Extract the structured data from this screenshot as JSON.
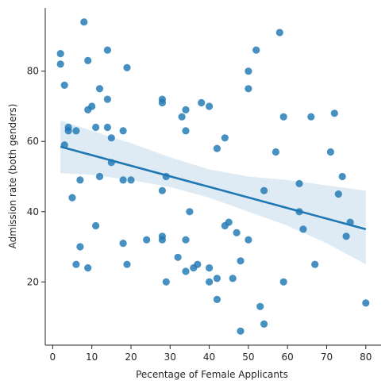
{
  "chart_data": {
    "type": "scatter",
    "title": "",
    "xlabel": "Pecentage of Female Applicants",
    "ylabel": "Admission rate (both genders)",
    "xlim": [
      -1.9,
      83.9
    ],
    "ylim": [
      2,
      98
    ],
    "x_ticks": [
      0,
      10,
      20,
      30,
      40,
      50,
      60,
      70,
      80
    ],
    "y_ticks": [
      20,
      40,
      60,
      80
    ],
    "grid": false,
    "legend": "none",
    "point_color": "#1f77b4",
    "regression_color": "#1f77b4",
    "ci_color": "#1f77b4",
    "points": [
      {
        "x": 2,
        "y": 85
      },
      {
        "x": 2,
        "y": 82
      },
      {
        "x": 3,
        "y": 76
      },
      {
        "x": 3,
        "y": 59
      },
      {
        "x": 4,
        "y": 64
      },
      {
        "x": 4,
        "y": 63
      },
      {
        "x": 5,
        "y": 44
      },
      {
        "x": 6,
        "y": 63
      },
      {
        "x": 6,
        "y": 25
      },
      {
        "x": 7,
        "y": 49
      },
      {
        "x": 7,
        "y": 30
      },
      {
        "x": 8,
        "y": 94
      },
      {
        "x": 9,
        "y": 83
      },
      {
        "x": 9,
        "y": 69
      },
      {
        "x": 9,
        "y": 24
      },
      {
        "x": 10,
        "y": 70
      },
      {
        "x": 11,
        "y": 64
      },
      {
        "x": 11,
        "y": 36
      },
      {
        "x": 12,
        "y": 75
      },
      {
        "x": 12,
        "y": 50
      },
      {
        "x": 14,
        "y": 86
      },
      {
        "x": 14,
        "y": 72
      },
      {
        "x": 14,
        "y": 64
      },
      {
        "x": 15,
        "y": 61
      },
      {
        "x": 15,
        "y": 54
      },
      {
        "x": 18,
        "y": 63
      },
      {
        "x": 18,
        "y": 49
      },
      {
        "x": 18,
        "y": 31
      },
      {
        "x": 19,
        "y": 81
      },
      {
        "x": 19,
        "y": 25
      },
      {
        "x": 20,
        "y": 49
      },
      {
        "x": 24,
        "y": 32
      },
      {
        "x": 28,
        "y": 72
      },
      {
        "x": 28,
        "y": 71
      },
      {
        "x": 28,
        "y": 46
      },
      {
        "x": 28,
        "y": 33
      },
      {
        "x": 28,
        "y": 32
      },
      {
        "x": 29,
        "y": 50
      },
      {
        "x": 29,
        "y": 20
      },
      {
        "x": 32,
        "y": 27
      },
      {
        "x": 33,
        "y": 67
      },
      {
        "x": 34,
        "y": 69
      },
      {
        "x": 34,
        "y": 63
      },
      {
        "x": 34,
        "y": 32
      },
      {
        "x": 34,
        "y": 23
      },
      {
        "x": 35,
        "y": 40
      },
      {
        "x": 36,
        "y": 24
      },
      {
        "x": 37,
        "y": 25
      },
      {
        "x": 38,
        "y": 71
      },
      {
        "x": 40,
        "y": 70
      },
      {
        "x": 40,
        "y": 24
      },
      {
        "x": 40,
        "y": 20
      },
      {
        "x": 42,
        "y": 58
      },
      {
        "x": 42,
        "y": 21
      },
      {
        "x": 42,
        "y": 15
      },
      {
        "x": 44,
        "y": 61
      },
      {
        "x": 44,
        "y": 36
      },
      {
        "x": 45,
        "y": 37
      },
      {
        "x": 46,
        "y": 21
      },
      {
        "x": 47,
        "y": 34
      },
      {
        "x": 48,
        "y": 26
      },
      {
        "x": 48,
        "y": 6
      },
      {
        "x": 50,
        "y": 80
      },
      {
        "x": 50,
        "y": 75
      },
      {
        "x": 50,
        "y": 32
      },
      {
        "x": 52,
        "y": 86
      },
      {
        "x": 53,
        "y": 13
      },
      {
        "x": 54,
        "y": 46
      },
      {
        "x": 54,
        "y": 8
      },
      {
        "x": 57,
        "y": 57
      },
      {
        "x": 58,
        "y": 91
      },
      {
        "x": 59,
        "y": 67
      },
      {
        "x": 59,
        "y": 20
      },
      {
        "x": 63,
        "y": 48
      },
      {
        "x": 63,
        "y": 40
      },
      {
        "x": 64,
        "y": 35
      },
      {
        "x": 66,
        "y": 67
      },
      {
        "x": 67,
        "y": 25
      },
      {
        "x": 71,
        "y": 57
      },
      {
        "x": 72,
        "y": 68
      },
      {
        "x": 73,
        "y": 45
      },
      {
        "x": 74,
        "y": 50
      },
      {
        "x": 75,
        "y": 33
      },
      {
        "x": 76,
        "y": 37
      },
      {
        "x": 80,
        "y": 14
      }
    ],
    "regression_line": {
      "x": [
        2,
        80
      ],
      "y": [
        58.5,
        35
      ]
    },
    "confidence_band": {
      "x": [
        2,
        10,
        20,
        30,
        40,
        50,
        60,
        70,
        80
      ],
      "upper": [
        66,
        63,
        59.5,
        55.5,
        52,
        50,
        49,
        47.5,
        46
      ],
      "lower": [
        51,
        50.5,
        49,
        47,
        44,
        40,
        36,
        31,
        25
      ]
    }
  }
}
